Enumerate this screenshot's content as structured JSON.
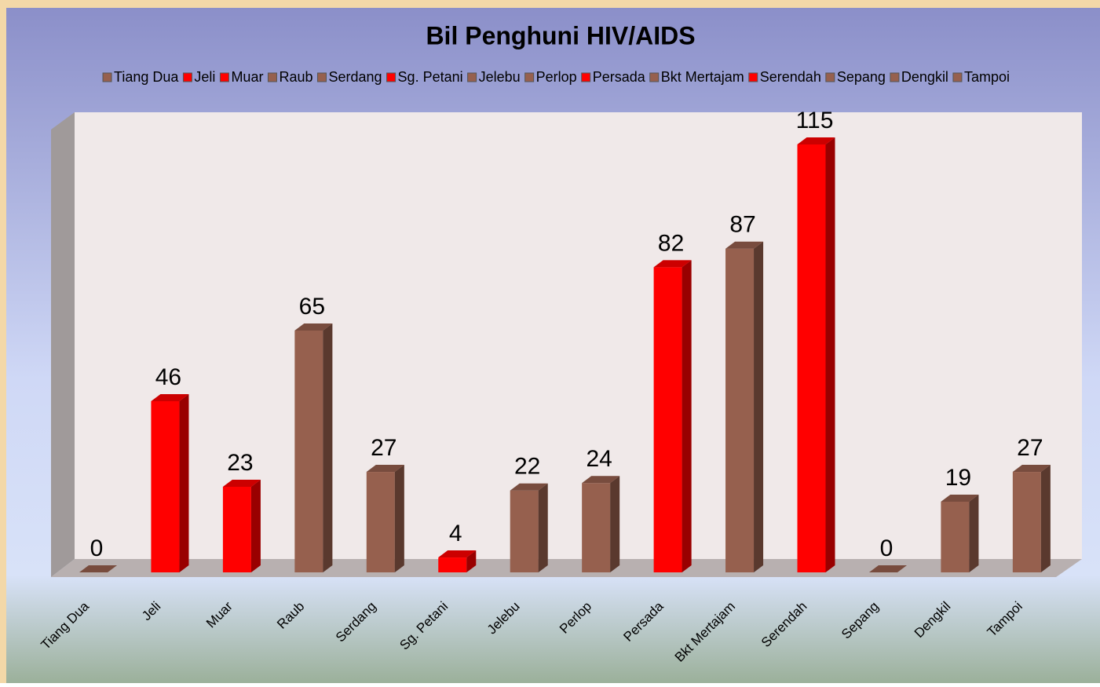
{
  "chart_data": {
    "type": "bar",
    "title": "Bil Penghuni HIV/AIDS",
    "categories": [
      "Tiang Dua",
      "Jeli",
      "Muar",
      "Raub",
      "Serdang",
      "Sg. Petani",
      "Jelebu",
      "Perlop",
      "Persada",
      "Bkt Mertajam",
      "Serendah",
      "Sepang",
      "Dengkil",
      "Tampoi"
    ],
    "values": [
      0,
      46,
      23,
      65,
      27,
      4,
      22,
      24,
      82,
      87,
      115,
      0,
      19,
      27
    ],
    "colors": [
      "#96604e",
      "#ff0000",
      "#ff0000",
      "#96604e",
      "#96604e",
      "#ff0000",
      "#96604e",
      "#96604e",
      "#ff0000",
      "#96604e",
      "#ff0000",
      "#96604e",
      "#96604e",
      "#96604e"
    ],
    "legend": "top"
  }
}
